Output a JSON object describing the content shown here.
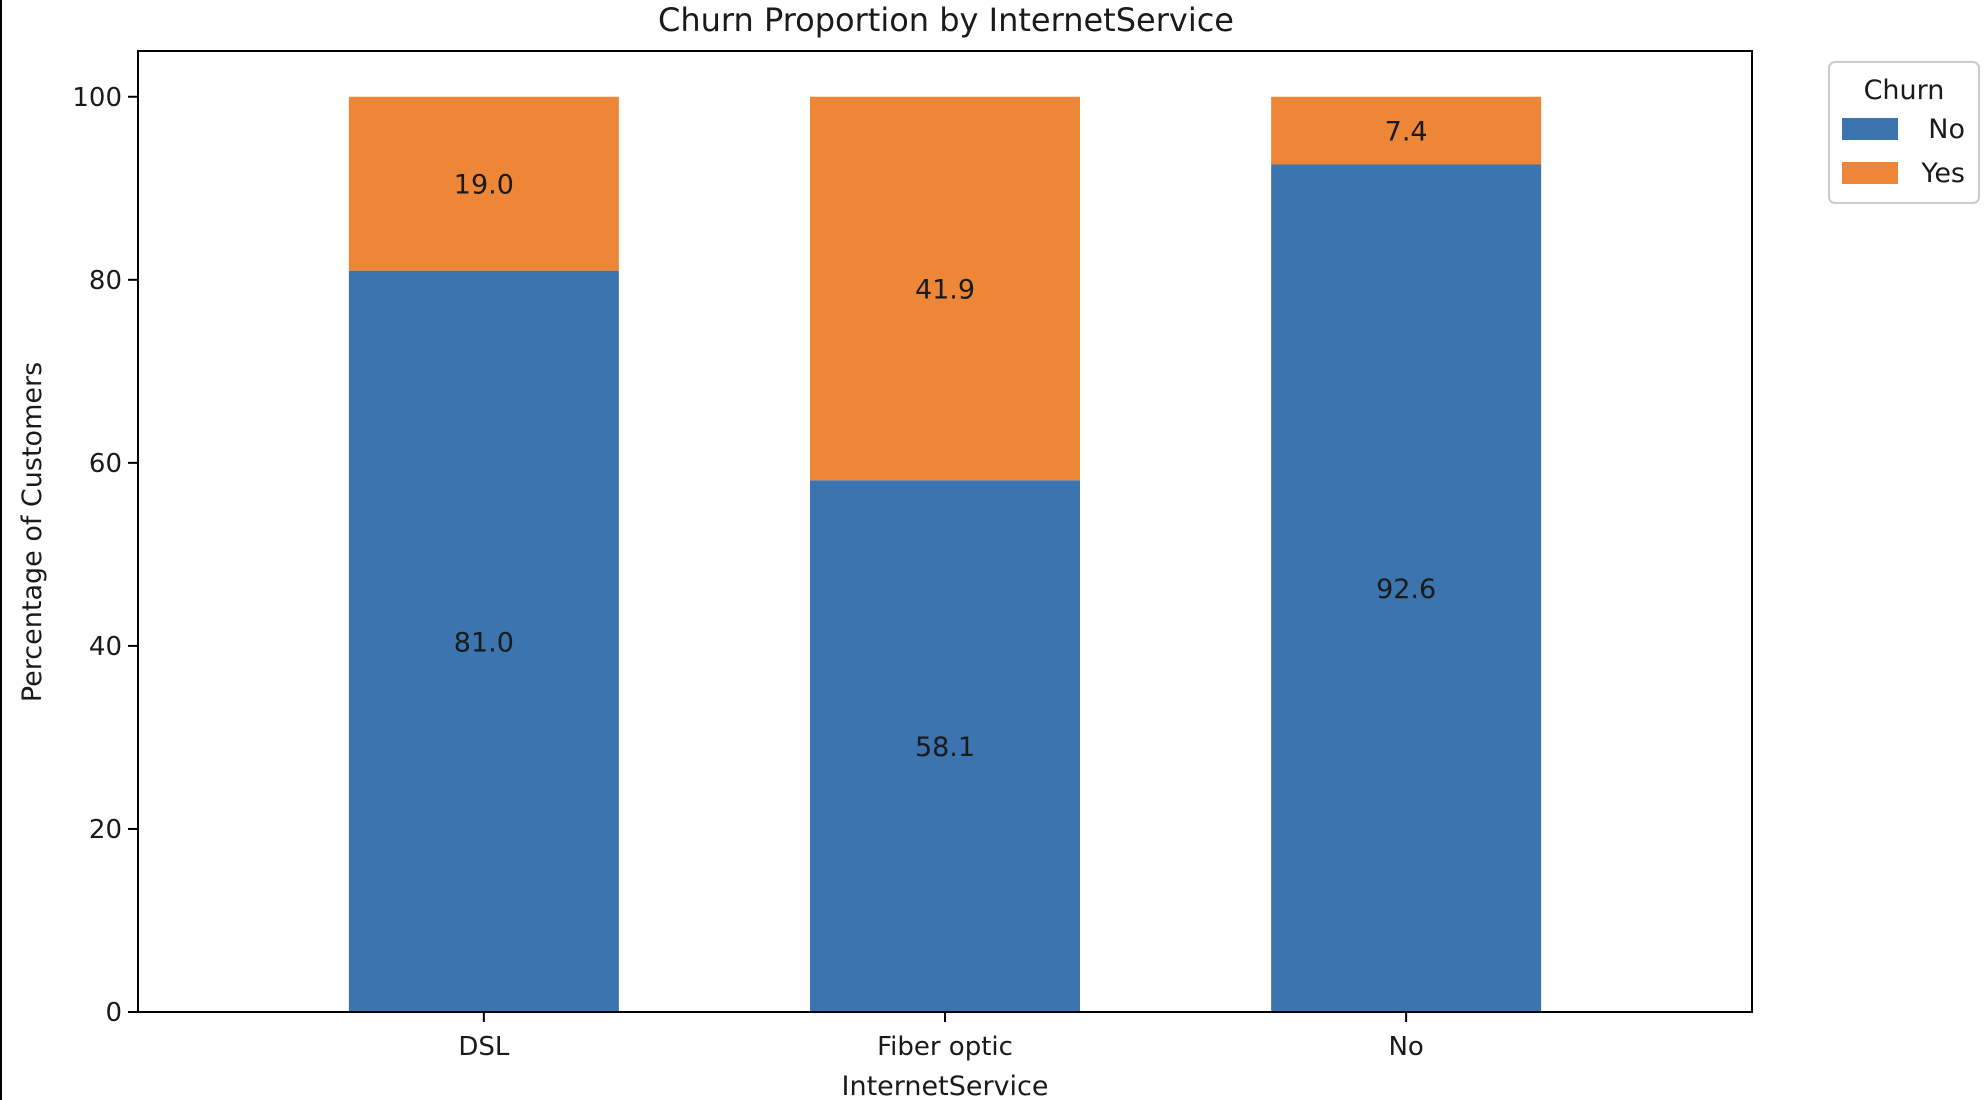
{
  "chart_data": {
    "type": "bar",
    "stacked": true,
    "title": "Churn Proportion by InternetService",
    "xlabel": "InternetService",
    "ylabel": "Percentage of Customers",
    "categories": [
      "DSL",
      "Fiber optic",
      "No"
    ],
    "series": [
      {
        "name": "No",
        "values": [
          81.0,
          58.1,
          92.6
        ],
        "color": "#3b74ae"
      },
      {
        "name": "Yes",
        "values": [
          19.0,
          41.9,
          7.4
        ],
        "color": "#ee8637"
      }
    ],
    "ylim": [
      0,
      105
    ],
    "yticks": [
      0,
      20,
      40,
      60,
      80,
      100
    ],
    "grid": false,
    "legend": {
      "title": "Churn",
      "placement": "outside top-right"
    }
  }
}
